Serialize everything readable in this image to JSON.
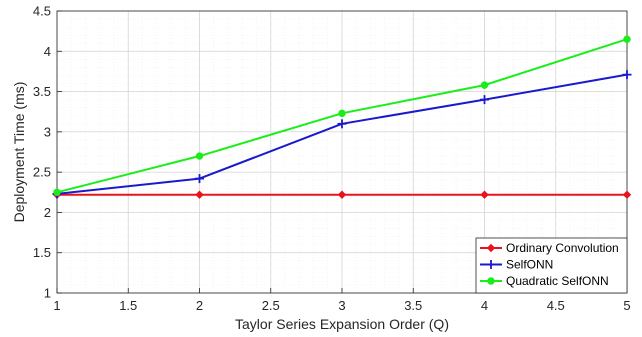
{
  "chart_data": {
    "type": "line",
    "title": "",
    "xlabel": "Taylor Series Expansion Order (Q)",
    "ylabel": "Deployment Time (ms)",
    "xlim": [
      1,
      5
    ],
    "ylim": [
      1,
      4.5
    ],
    "xticks": [
      "1",
      "1.5",
      "2",
      "2.5",
      "3",
      "3.5",
      "4",
      "4.5",
      "5"
    ],
    "yticks": [
      "1",
      "1.5",
      "2",
      "2.5",
      "3",
      "3.5",
      "4",
      "4.5"
    ],
    "grid": "on (major and minor)",
    "legend_position": "bottom-right",
    "x": [
      1,
      2,
      3,
      4,
      5
    ],
    "series": [
      {
        "name": "Ordinary Convolution",
        "values": [
          2.22,
          2.22,
          2.22,
          2.22,
          2.22
        ],
        "color": "#e8141c",
        "marker": "diamond"
      },
      {
        "name": "SelfONN",
        "values": [
          2.23,
          2.42,
          3.1,
          3.4,
          3.71
        ],
        "color": "#1a1acc",
        "marker": "plus"
      },
      {
        "name": "Quadratic SelfONN",
        "values": [
          2.25,
          2.7,
          3.23,
          3.58,
          4.15
        ],
        "color": "#1aee1a",
        "marker": "circle"
      }
    ]
  }
}
